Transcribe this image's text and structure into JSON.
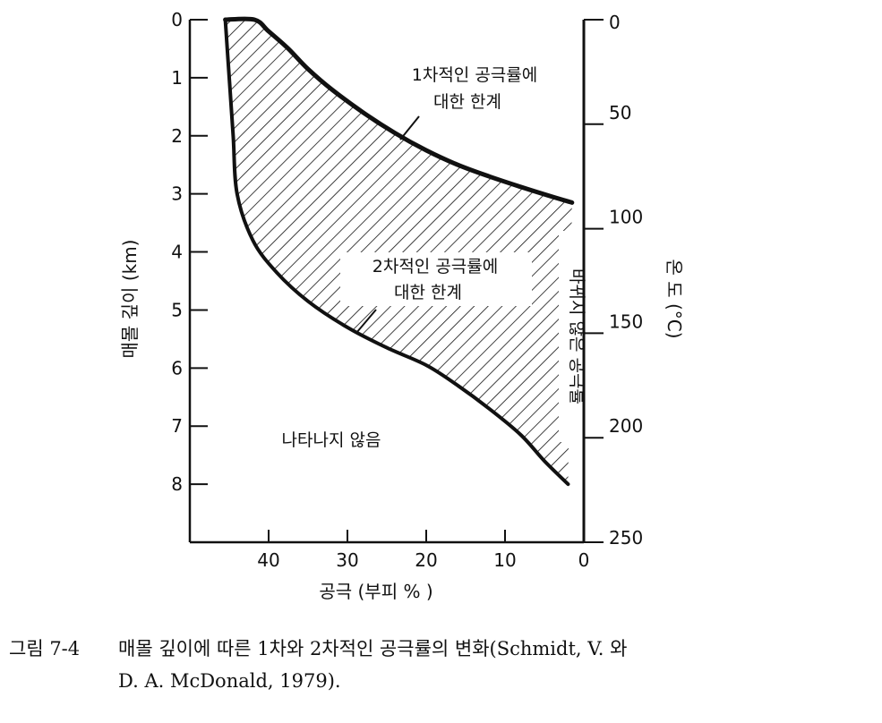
{
  "chart_data": {
    "type": "area",
    "x_axis": {
      "label": "공극 (부피 % )",
      "ticks": [
        "40",
        "30",
        "20",
        "10",
        "0"
      ],
      "range": [
        50,
        0
      ],
      "direction": "decreasing-left-to-right"
    },
    "y_axis_left": {
      "label": "매몰 깊이 (km)",
      "ticks": [
        "0",
        "1",
        "2",
        "3",
        "4",
        "5",
        "6",
        "7",
        "8"
      ],
      "range": [
        0,
        9
      ],
      "inverted": true
    },
    "y_axis_right": {
      "label": "온 도 (°C)",
      "ticks": [
        "0",
        "50",
        "100",
        "150",
        "200",
        "250"
      ],
      "range": [
        0,
        250
      ]
    },
    "series": [
      {
        "name": "1차적인 공극률에 대한 한계",
        "points": [
          [
            45.5,
            0
          ],
          [
            41.8,
            0
          ],
          [
            40,
            0.2
          ],
          [
            37.5,
            0.5
          ],
          [
            35,
            0.85
          ],
          [
            32,
            1.2
          ],
          [
            28,
            1.6
          ],
          [
            24,
            1.95
          ],
          [
            20,
            2.25
          ],
          [
            16,
            2.5
          ],
          [
            12,
            2.7
          ],
          [
            8,
            2.88
          ],
          [
            4,
            3.05
          ],
          [
            1.5,
            3.15
          ]
        ]
      },
      {
        "name": "2차적인 공극률에 대한 한계",
        "points": [
          [
            45.5,
            0
          ],
          [
            45,
            1
          ],
          [
            44.5,
            2
          ],
          [
            44,
            3
          ],
          [
            42,
            3.8
          ],
          [
            39,
            4.35
          ],
          [
            35,
            4.85
          ],
          [
            30,
            5.3
          ],
          [
            25,
            5.65
          ],
          [
            20,
            5.95
          ],
          [
            16,
            6.3
          ],
          [
            12,
            6.7
          ],
          [
            8,
            7.15
          ],
          [
            5,
            7.6
          ],
          [
            2,
            8
          ]
        ]
      }
    ],
    "fill": {
      "between": [
        "1차적인 공극률에 대한 한계",
        "2차적인 공극률에 대한 한계"
      ],
      "pattern": "diagonal-hatch"
    },
    "annotations": [
      {
        "line1": "1차적인 공극률에",
        "line2": "대한 한계"
      },
      {
        "line1": "2차적인 공극률에",
        "line2": "대한 한계"
      },
      {
        "text": "나타나지 않음"
      },
      {
        "text": "바뀌지 않은 공극률"
      }
    ],
    "grid": false,
    "legend": "none"
  },
  "caption": {
    "label": "그림 7-4",
    "line1": "매몰 깊이에 따른 1차와 2차적인 공극률의 변화(Schmidt, V. 와",
    "line2": "D. A. McDonald, 1979)."
  },
  "colors": {
    "ink": "#111111",
    "background": "#ffffff"
  }
}
